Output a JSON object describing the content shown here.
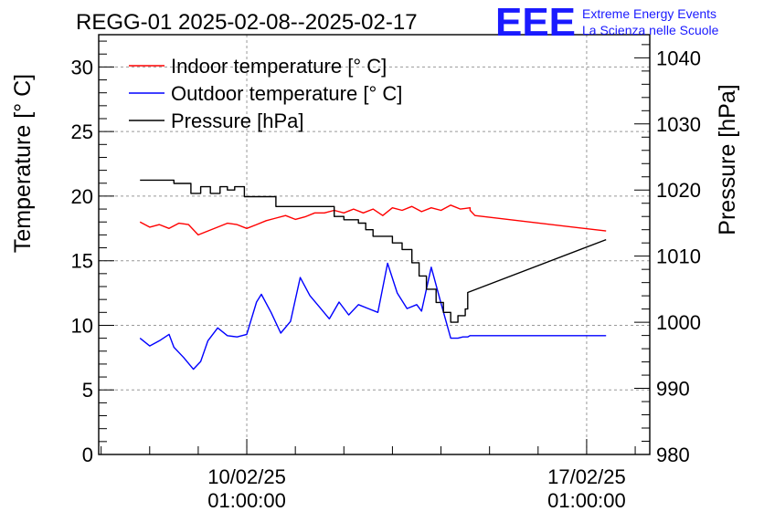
{
  "chart_data": {
    "type": "line",
    "title": "REGG-01 2025-02-08--2025-02-17",
    "logo": {
      "text": "EEE",
      "line1": "Extreme Energy Events",
      "line2": "La Scienza nelle Scuole"
    },
    "x": {
      "ticks": [
        {
          "value": 0,
          "line1": "10/02/25",
          "line2": "01:00:00"
        },
        {
          "value": 7,
          "line1": "17/02/25",
          "line2": "01:00:00"
        }
      ],
      "xlim": [
        -3.05,
        8.3
      ],
      "gridlines": [
        0,
        7
      ]
    },
    "y_left": {
      "label": "Temperature [° C]",
      "ylim": [
        0,
        32.5
      ],
      "ticks": [
        0,
        5,
        10,
        15,
        20,
        25,
        30
      ]
    },
    "y_right": {
      "label": "Pressure [hPa]",
      "ylim": [
        980,
        1043.5
      ],
      "ticks": [
        980,
        990,
        1000,
        1010,
        1020,
        1030,
        1040
      ]
    },
    "series": [
      {
        "name": "Indoor temperature [° C]",
        "axis": "left",
        "color": "#ff0000",
        "x": [
          -2.2,
          -2.0,
          -1.8,
          -1.6,
          -1.4,
          -1.2,
          -1.0,
          -0.8,
          -0.6,
          -0.4,
          -0.2,
          0.0,
          0.2,
          0.4,
          0.6,
          0.8,
          1.0,
          1.2,
          1.4,
          1.6,
          1.8,
          2.0,
          2.2,
          2.4,
          2.6,
          2.8,
          3.0,
          3.2,
          3.4,
          3.6,
          3.8,
          4.0,
          4.2,
          4.4,
          4.6,
          4.6,
          4.7,
          7.4
        ],
        "values": [
          18.0,
          17.6,
          17.8,
          17.5,
          17.9,
          17.8,
          17.0,
          17.3,
          17.6,
          17.9,
          17.8,
          17.5,
          17.8,
          18.1,
          18.3,
          18.5,
          18.2,
          18.4,
          18.7,
          18.7,
          18.9,
          18.7,
          19.0,
          18.7,
          19.0,
          18.5,
          19.1,
          18.9,
          19.2,
          18.8,
          19.1,
          18.9,
          19.3,
          19.0,
          19.1,
          18.9,
          18.5,
          17.3
        ]
      },
      {
        "name": "Outdoor temperature [° C]",
        "axis": "left",
        "color": "#0000ff",
        "x": [
          -2.2,
          -2.0,
          -1.8,
          -1.6,
          -1.5,
          -1.3,
          -1.1,
          -0.95,
          -0.8,
          -0.6,
          -0.4,
          -0.2,
          0.0,
          0.2,
          0.3,
          0.5,
          0.7,
          0.9,
          1.1,
          1.3,
          1.5,
          1.7,
          1.9,
          2.1,
          2.3,
          2.5,
          2.7,
          2.9,
          3.1,
          3.3,
          3.5,
          3.6,
          3.8,
          4.0,
          4.2,
          4.35,
          4.45,
          4.55,
          4.6,
          4.7,
          7.4
        ],
        "values": [
          9.0,
          8.4,
          8.8,
          9.3,
          8.3,
          7.5,
          6.6,
          7.2,
          8.8,
          9.8,
          9.2,
          9.1,
          9.3,
          11.8,
          12.4,
          11.0,
          9.4,
          10.3,
          13.7,
          12.3,
          11.4,
          10.5,
          11.8,
          10.8,
          11.6,
          11.3,
          11.0,
          14.8,
          12.5,
          11.3,
          11.6,
          11.1,
          14.5,
          11.7,
          9.0,
          9.0,
          9.1,
          9.1,
          9.2,
          9.2,
          9.2
        ]
      },
      {
        "name": "Pressure [hPa]",
        "axis": "right",
        "color": "#000000",
        "step": true,
        "x": [
          -2.2,
          -1.5,
          -1.15,
          -0.95,
          -0.75,
          -0.55,
          -0.4,
          -0.25,
          -0.05,
          0.6,
          1.4,
          1.8,
          2.0,
          2.3,
          2.45,
          2.6,
          3.0,
          3.2,
          3.4,
          3.55,
          3.7,
          3.9,
          4.05,
          4.2,
          4.35,
          4.5,
          4.55,
          7.4
        ],
        "values": [
          1021.5,
          1021.0,
          1019.5,
          1020.5,
          1019.5,
          1020.5,
          1020.0,
          1020.5,
          1019.0,
          1017.5,
          1017.5,
          1016.0,
          1015.5,
          1015.0,
          1014.0,
          1013.0,
          1012.0,
          1011.0,
          1009.0,
          1007.0,
          1005.0,
          1003.0,
          1001.5,
          1000.0,
          1001.0,
          1002.0,
          1004.5,
          1012.5
        ]
      }
    ]
  }
}
